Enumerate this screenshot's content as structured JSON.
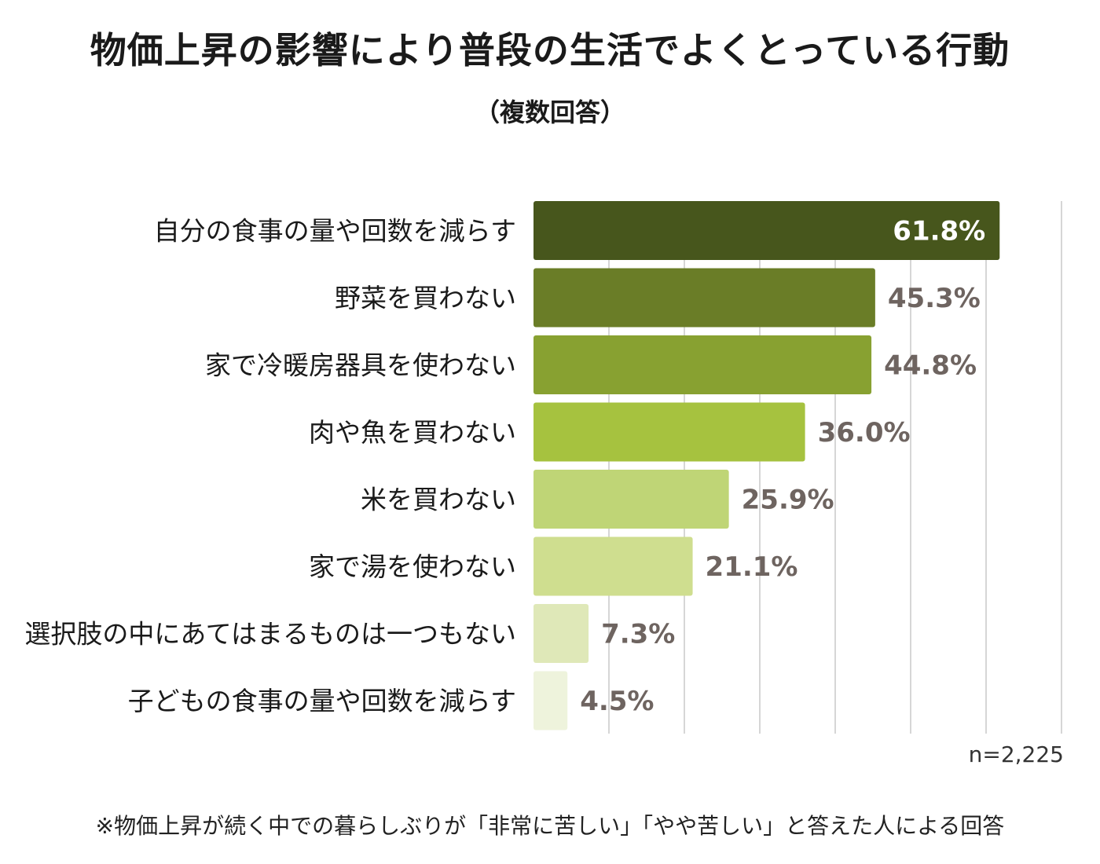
{
  "title": "物価上昇の影響により普段の生活でよくとっている行動",
  "subtitle": "（複数回答）",
  "sample_size": "n=2,225",
  "footnote": "※物価上昇が続く中での暮らしぶりが「非常に苦しい」「やや苦しい」と答えた人による回答",
  "colors": {
    "bars": [
      "#47561c",
      "#6a7d27",
      "#88a131",
      "#a6c23f",
      "#bfd576",
      "#cfde8f",
      "#dfe8b8",
      "#eef3dc"
    ],
    "label_dark": "#6e6460",
    "label_inside": "#ffffff",
    "grid": "#d6d6d6"
  },
  "chart_data": {
    "type": "bar",
    "orientation": "horizontal",
    "title": "物価上昇の影響により普段の生活でよくとっている行動",
    "subtitle": "（複数回答）",
    "categories": [
      "自分の食事の量や回数を減らす",
      "野菜を買わない",
      "家で冷暖房器具を使わない",
      "肉や魚を買わない",
      "米を買わない",
      "家で湯を使わない",
      "選択肢の中にあてはまるものは一つもない",
      "子どもの食事の量や回数を減らす"
    ],
    "values": [
      61.8,
      45.3,
      44.8,
      36.0,
      25.9,
      21.1,
      7.3,
      4.5
    ],
    "value_labels": [
      "61.8%",
      "45.3%",
      "44.8%",
      "36.0%",
      "25.9%",
      "21.1%",
      "7.3%",
      "4.5%"
    ],
    "xlim": [
      0,
      70
    ],
    "grid": true,
    "xlabel": "",
    "ylabel": ""
  }
}
